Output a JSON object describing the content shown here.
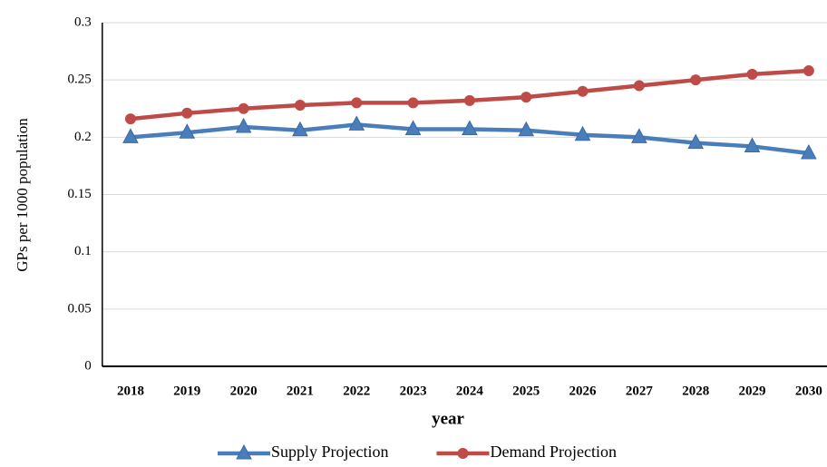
{
  "chart_data": {
    "type": "line",
    "categories": [
      "2018",
      "2019",
      "2020",
      "2021",
      "2022",
      "2023",
      "2024",
      "2025",
      "2026",
      "2027",
      "2028",
      "2029",
      "2030"
    ],
    "series": [
      {
        "name": "Supply Projection",
        "color": "#4a7ebb",
        "marker": "triangle",
        "values": [
          0.2,
          0.204,
          0.209,
          0.206,
          0.211,
          0.207,
          0.207,
          0.206,
          0.202,
          0.2,
          0.195,
          0.192,
          0.186
        ]
      },
      {
        "name": "Demand Projection",
        "color": "#be4b48",
        "marker": "circle",
        "values": [
          0.216,
          0.221,
          0.225,
          0.228,
          0.23,
          0.23,
          0.232,
          0.235,
          0.24,
          0.245,
          0.25,
          0.255,
          0.258
        ]
      }
    ],
    "x_label": "year",
    "y_label": "GPs per 1000 population",
    "ylim": [
      0,
      0.3
    ],
    "yticks": [
      0,
      0.05,
      0.1,
      0.15,
      0.2,
      0.25,
      0.3
    ],
    "grid": true,
    "legend": "bottom"
  }
}
